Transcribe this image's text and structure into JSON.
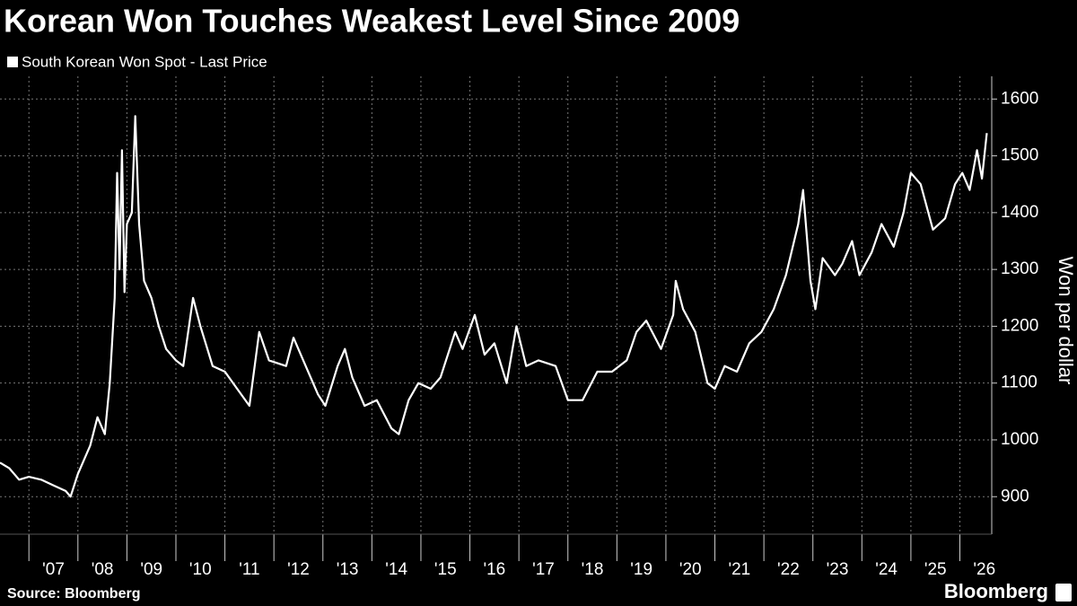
{
  "chart_data": {
    "type": "line",
    "title": "Korean Won Touches Weakest Level Since 2009",
    "y_label": "Won per dollar",
    "source": "Source: Bloomberg",
    "brand": "Bloomberg",
    "grid": true,
    "ylim": [
      834,
      1640
    ],
    "yticks": [
      900,
      1000,
      1100,
      1200,
      1300,
      1400,
      1500,
      1600
    ],
    "xlim": [
      2006.41,
      2026.65
    ],
    "xticks": [
      {
        "value": 2007,
        "label": "'07"
      },
      {
        "value": 2008,
        "label": "'08"
      },
      {
        "value": 2009,
        "label": "'09"
      },
      {
        "value": 2010,
        "label": "'10"
      },
      {
        "value": 2011,
        "label": "'11"
      },
      {
        "value": 2012,
        "label": "'12"
      },
      {
        "value": 2013,
        "label": "'13"
      },
      {
        "value": 2014,
        "label": "'14"
      },
      {
        "value": 2015,
        "label": "'15"
      },
      {
        "value": 2016,
        "label": "'16"
      },
      {
        "value": 2017,
        "label": "'17"
      },
      {
        "value": 2018,
        "label": "'18"
      },
      {
        "value": 2019,
        "label": "'19"
      },
      {
        "value": 2020,
        "label": "'20"
      },
      {
        "value": 2021,
        "label": "'21"
      },
      {
        "value": 2022,
        "label": "'22"
      },
      {
        "value": 2023,
        "label": "'23"
      },
      {
        "value": 2024,
        "label": "'24"
      },
      {
        "value": 2025,
        "label": "'25"
      },
      {
        "value": 2026,
        "label": "'26"
      }
    ],
    "x": [
      2006.41,
      2006.6,
      2006.8,
      2007.0,
      2007.25,
      2007.5,
      2007.75,
      2007.85,
      2008.0,
      2008.25,
      2008.4,
      2008.55,
      2008.65,
      2008.75,
      2008.8,
      2008.85,
      2008.9,
      2008.95,
      2009.0,
      2009.1,
      2009.17,
      2009.25,
      2009.35,
      2009.5,
      2009.65,
      2009.8,
      2010.0,
      2010.15,
      2010.35,
      2010.5,
      2010.75,
      2011.0,
      2011.25,
      2011.5,
      2011.7,
      2011.9,
      2012.25,
      2012.4,
      2012.6,
      2012.9,
      2013.05,
      2013.3,
      2013.45,
      2013.6,
      2013.85,
      2014.1,
      2014.4,
      2014.55,
      2014.75,
      2014.95,
      2015.2,
      2015.4,
      2015.7,
      2015.85,
      2016.1,
      2016.3,
      2016.5,
      2016.75,
      2016.95,
      2017.15,
      2017.4,
      2017.75,
      2018.0,
      2018.3,
      2018.6,
      2018.9,
      2019.2,
      2019.4,
      2019.6,
      2019.9,
      2020.15,
      2020.2,
      2020.35,
      2020.6,
      2020.85,
      2021.0,
      2021.2,
      2021.45,
      2021.7,
      2021.95,
      2022.2,
      2022.45,
      2022.7,
      2022.8,
      2022.95,
      2023.05,
      2023.2,
      2023.45,
      2023.6,
      2023.8,
      2023.95,
      2024.2,
      2024.4,
      2024.65,
      2024.85,
      2025.0,
      2025.2,
      2025.45,
      2025.7,
      2025.9,
      2026.05,
      2026.2,
      2026.35,
      2026.45,
      2026.55
    ],
    "series": [
      {
        "name": "South Korean Won Spot - Last Price",
        "color": "#ffffff",
        "values": [
          960,
          950,
          930,
          935,
          930,
          920,
          910,
          900,
          940,
          990,
          1040,
          1010,
          1100,
          1250,
          1470,
          1300,
          1510,
          1260,
          1380,
          1400,
          1570,
          1380,
          1280,
          1250,
          1200,
          1160,
          1140,
          1130,
          1250,
          1200,
          1130,
          1120,
          1090,
          1060,
          1190,
          1140,
          1130,
          1180,
          1140,
          1080,
          1060,
          1130,
          1160,
          1110,
          1060,
          1070,
          1020,
          1010,
          1070,
          1100,
          1090,
          1110,
          1190,
          1160,
          1220,
          1150,
          1170,
          1100,
          1200,
          1130,
          1140,
          1130,
          1070,
          1070,
          1120,
          1120,
          1140,
          1190,
          1210,
          1160,
          1220,
          1280,
          1230,
          1190,
          1100,
          1090,
          1130,
          1120,
          1170,
          1190,
          1230,
          1290,
          1380,
          1440,
          1280,
          1230,
          1320,
          1290,
          1310,
          1350,
          1290,
          1330,
          1380,
          1340,
          1400,
          1470,
          1450,
          1370,
          1390,
          1450,
          1470,
          1440,
          1510,
          1460,
          1540
        ]
      }
    ]
  }
}
